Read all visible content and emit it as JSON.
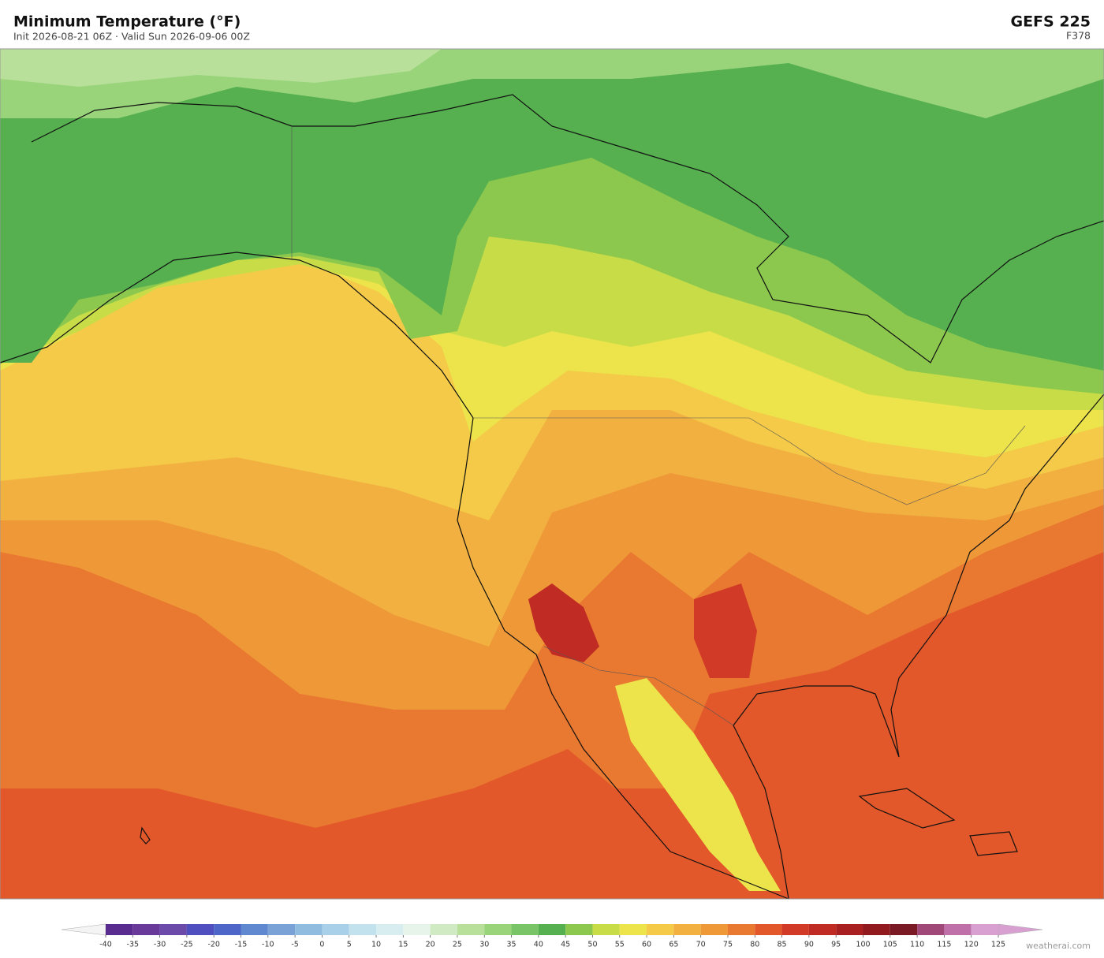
{
  "header": {
    "title": "Minimum Temperature  (°F)",
    "subtitle": "Init 2026-08-21 06Z  ·  Valid Sun 2026-09-06 00Z",
    "model": "GEFS  225",
    "forecast_hour": "F378"
  },
  "colorbar": {
    "ticks": [
      -40,
      -35,
      -30,
      -25,
      -20,
      -15,
      -10,
      -5,
      0,
      5,
      10,
      15,
      20,
      25,
      30,
      35,
      40,
      45,
      50,
      55,
      60,
      65,
      70,
      75,
      80,
      85,
      90,
      95,
      100,
      105,
      110,
      115,
      120,
      125
    ],
    "colors": [
      "#5b2c8f",
      "#6a3a9a",
      "#6b4aaa",
      "#4f4fc0",
      "#4d66c8",
      "#5f88d0",
      "#7aa2d6",
      "#90bce0",
      "#a8d0e8",
      "#c2e2ee",
      "#d8edf0",
      "#e6f4ea",
      "#d0ebc4",
      "#b8e09a",
      "#99d47a",
      "#78c466",
      "#56b04f",
      "#8cc84e",
      "#c8dc48",
      "#ece44a",
      "#f4ca48",
      "#f2b040",
      "#ef9838",
      "#e97830",
      "#e2582a",
      "#d03a26",
      "#c02c24",
      "#a82020",
      "#901a1e",
      "#7a1a24",
      "#a04878",
      "#c070a8",
      "#d8a0d0"
    ],
    "under_color": "#f4f4f4",
    "over_color": "#d8a0d0"
  },
  "watermark": "weatherai.com"
}
